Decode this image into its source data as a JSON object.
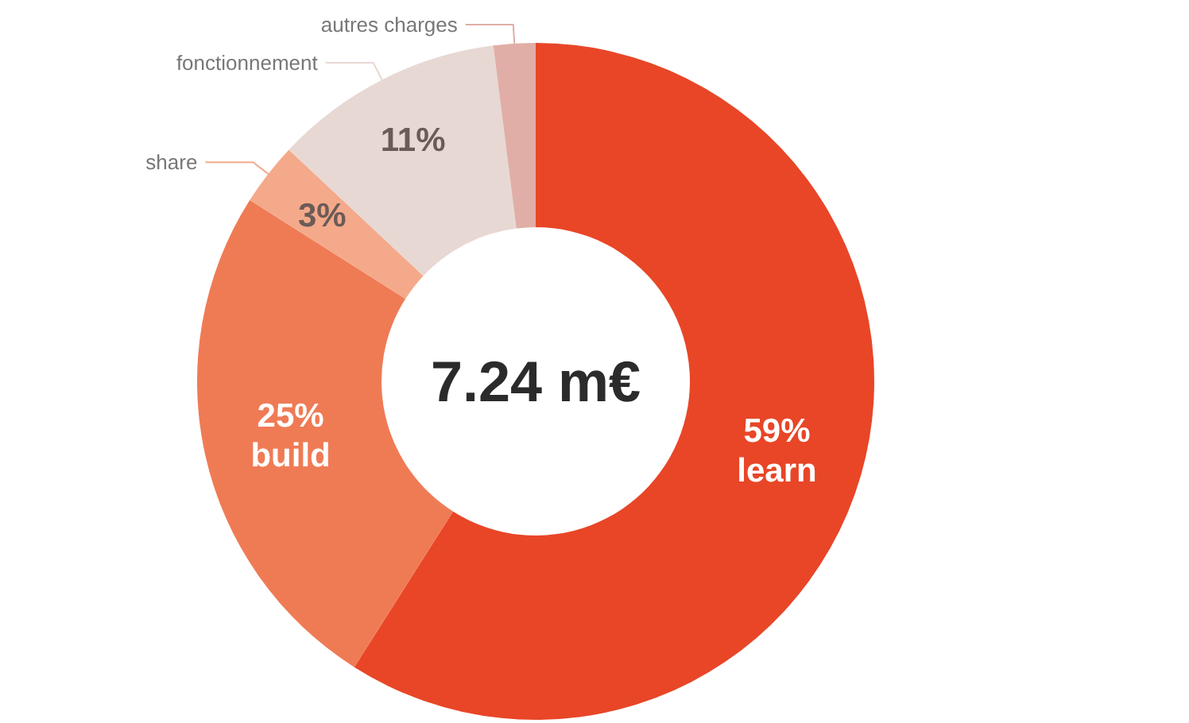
{
  "chart_data": {
    "type": "donut",
    "categories": [
      "learn",
      "build",
      "share",
      "fonctionnement",
      "autres charges"
    ],
    "values": [
      59,
      25,
      3,
      11,
      2
    ],
    "colors": [
      "#e84627",
      "#ef7b55",
      "#f4a98a",
      "#e8d8d3",
      "#e0aea6"
    ],
    "value_labels": [
      "59%",
      "25%",
      "3%",
      "11%",
      null
    ],
    "annotations": [
      "7.24 m€"
    ],
    "legend": false
  }
}
